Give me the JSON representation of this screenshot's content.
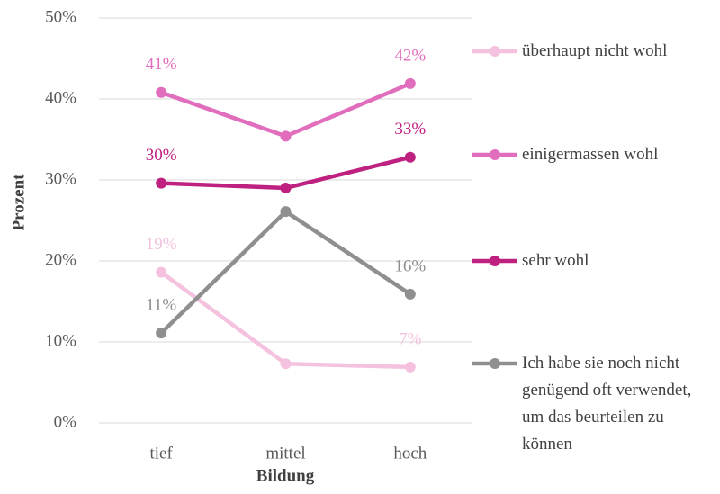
{
  "chart_data": {
    "type": "line",
    "xlabel": "Bildung",
    "ylabel": "Prozent",
    "categories": [
      "tief",
      "mittel",
      "hoch"
    ],
    "series": [
      {
        "name": "überhaupt nicht wohl",
        "color": "#f4c1de",
        "values": [
          18.6,
          7.3,
          6.9
        ],
        "value_labels": [
          "19%",
          null,
          "7%"
        ]
      },
      {
        "name": "einigermassen wohl",
        "color": "#e16dbd",
        "values": [
          40.8,
          35.4,
          41.9
        ],
        "value_labels": [
          "41%",
          null,
          "42%"
        ]
      },
      {
        "name": "sehr wohl",
        "color": "#bf2180",
        "values": [
          29.6,
          29.0,
          32.8
        ],
        "value_labels": [
          "30%",
          null,
          "33%"
        ]
      },
      {
        "name": "Ich habe sie noch nicht genügend oft verwendet, um das beurteilen zu können",
        "color": "#8f8f8f",
        "values": [
          11.1,
          26.1,
          15.9
        ],
        "value_labels": [
          "11%",
          null,
          "16%"
        ]
      }
    ],
    "ylim": [
      0,
      50
    ],
    "yticks": [
      {
        "value": 0,
        "label": "0%"
      },
      {
        "value": 10,
        "label": "10%"
      },
      {
        "value": 20,
        "label": "20%"
      },
      {
        "value": 30,
        "label": "30%"
      },
      {
        "value": 40,
        "label": "40%"
      },
      {
        "value": 50,
        "label": "50%"
      }
    ],
    "grid": true,
    "legend": "right"
  }
}
